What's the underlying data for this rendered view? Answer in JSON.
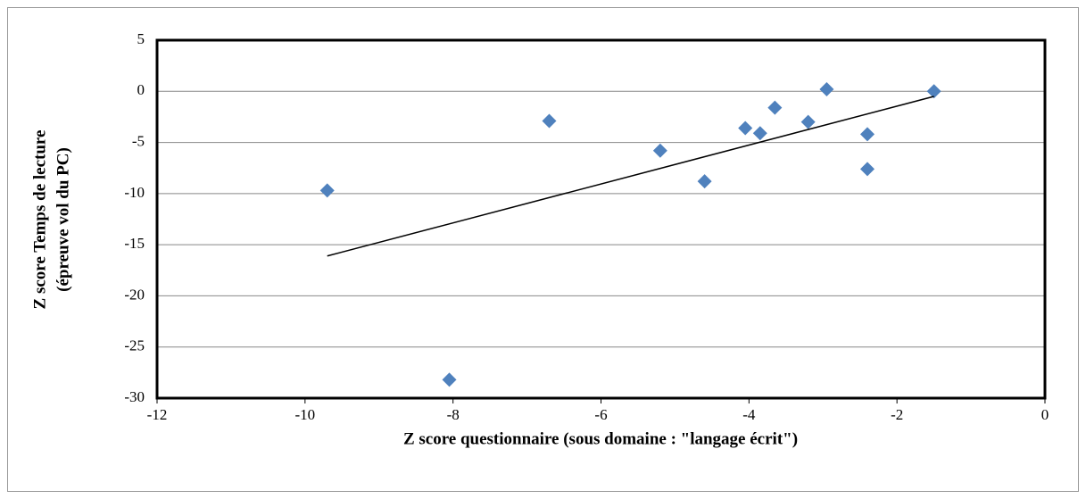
{
  "chart_data": {
    "type": "scatter",
    "xlabel": "Z score questionnaire (sous domaine : \"langage écrit\")",
    "ylabel": [
      "Z score Temps de lecture",
      "(épreuve vol du PC)"
    ],
    "series": [
      {
        "color": "#4f81bd",
        "x": [
          -9.7,
          -8.05,
          -6.7,
          -5.2,
          -4.6,
          -4.05,
          -3.85,
          -3.65,
          -3.2,
          -2.95,
          -2.4,
          -2.4,
          -1.5
        ],
        "values": [
          -9.7,
          -28.2,
          -2.9,
          -5.8,
          -8.8,
          -3.6,
          -4.1,
          -1.6,
          -3.0,
          0.2,
          -4.2,
          -7.6,
          0.0
        ]
      }
    ],
    "trendline": {
      "color": "#000000",
      "x": [
        -9.7,
        -1.5
      ],
      "y": [
        -16.1,
        -0.5
      ]
    },
    "xlim": [
      -12,
      0
    ],
    "xticks": [
      -12,
      -10,
      -8,
      -6,
      -4,
      -2,
      0
    ],
    "ylim": [
      -30,
      5
    ],
    "yticks": [
      -30,
      -25,
      -20,
      -15,
      -10,
      -5,
      0,
      5
    ],
    "grid": true
  }
}
